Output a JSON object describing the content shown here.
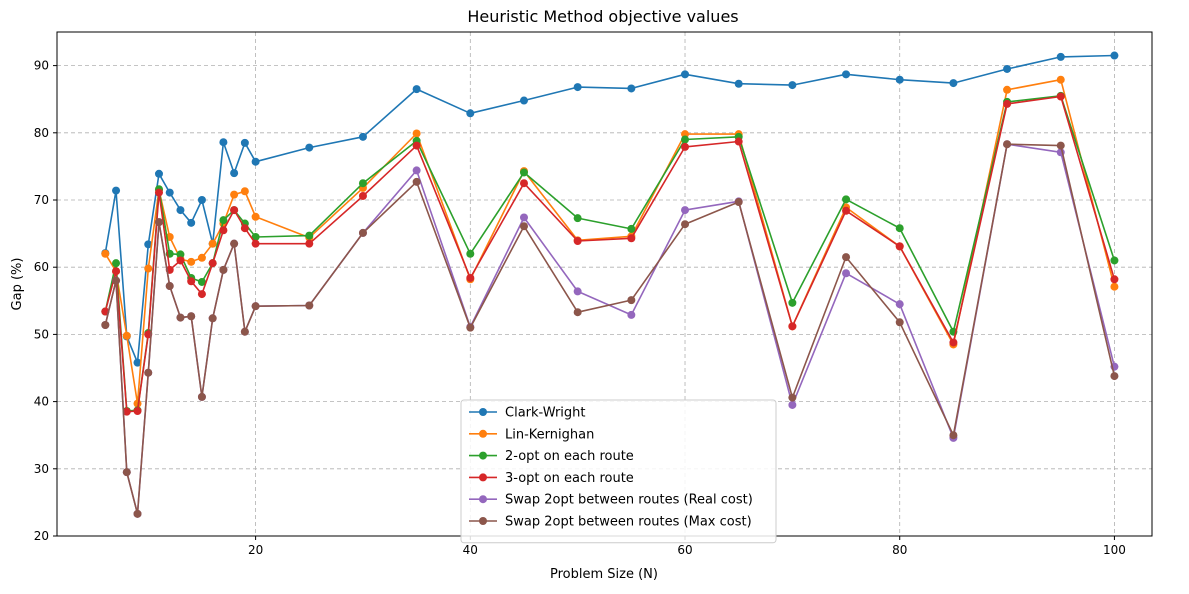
{
  "chart_data": {
    "type": "line",
    "title": "Heuristic Method objective values",
    "xlabel": "Problem Size (N)",
    "ylabel": "Gap (%)",
    "xlim": [
      1.5,
      103.5
    ],
    "ylim": [
      20,
      95
    ],
    "xticks": [
      20,
      40,
      60,
      80,
      100
    ],
    "yticks": [
      20,
      30,
      40,
      50,
      60,
      70,
      80,
      90
    ],
    "grid": true,
    "legend_position": "lower-center",
    "x": [
      6,
      7,
      8,
      9,
      10,
      11,
      12,
      13,
      14,
      15,
      16,
      17,
      18,
      19,
      20,
      25,
      30,
      35,
      40,
      45,
      50,
      55,
      60,
      65,
      70,
      75,
      80,
      85,
      90,
      95,
      100
    ],
    "series": [
      {
        "name": "Clark-Wright",
        "color": "#1f77b4",
        "values": [
          62.1,
          71.4,
          49.7,
          45.8,
          63.4,
          73.9,
          71.1,
          68.5,
          66.6,
          70.0,
          63.5,
          78.6,
          74.0,
          78.5,
          75.7,
          77.8,
          79.4,
          86.5,
          82.9,
          84.8,
          86.8,
          86.6,
          88.7,
          87.3,
          87.1,
          88.7,
          87.9,
          87.4,
          89.5,
          91.3,
          91.5
        ]
      },
      {
        "name": "Lin-Kernighan",
        "color": "#ff7f0e",
        "values": [
          62.0,
          59.4,
          49.8,
          39.7,
          59.8,
          71.5,
          64.5,
          61.2,
          60.8,
          61.4,
          63.5,
          66.5,
          70.8,
          71.3,
          67.5,
          64.4,
          71.8,
          79.9,
          58.2,
          74.3,
          64.0,
          64.6,
          79.8,
          79.8,
          51.2,
          68.9,
          63.1,
          48.5,
          86.4,
          87.9,
          57.1
        ]
      },
      {
        "name": "2-opt on each route",
        "color": "#2ca02c",
        "values": [
          53.4,
          60.6,
          38.6,
          38.7,
          50.2,
          71.6,
          62.0,
          61.9,
          58.4,
          57.8,
          60.6,
          67.0,
          68.5,
          66.5,
          64.5,
          64.7,
          72.5,
          78.8,
          62.0,
          74.1,
          67.3,
          65.7,
          79.0,
          79.4,
          54.7,
          70.1,
          65.8,
          50.4,
          84.6,
          85.5,
          61.0
        ]
      },
      {
        "name": "3-opt on each route",
        "color": "#d62728",
        "values": [
          53.4,
          59.4,
          38.5,
          38.6,
          50.0,
          71.1,
          59.6,
          61.0,
          57.9,
          56.0,
          60.6,
          65.5,
          68.5,
          65.8,
          63.5,
          63.5,
          70.6,
          78.1,
          58.4,
          72.5,
          63.9,
          64.3,
          77.9,
          78.7,
          51.2,
          68.4,
          63.1,
          48.8,
          84.3,
          85.4,
          58.2
        ]
      },
      {
        "name": "Swap 2opt between routes (Real cost)",
        "color": "#9467bd",
        "values": [
          51.4,
          58.0,
          29.5,
          23.3,
          44.3,
          66.7,
          57.2,
          52.5,
          52.7,
          40.7,
          52.4,
          59.6,
          63.5,
          50.4,
          54.2,
          54.3,
          65.1,
          74.4,
          51.1,
          67.4,
          56.4,
          52.9,
          68.5,
          69.8,
          39.5,
          59.1,
          54.5,
          34.6,
          78.3,
          77.1,
          45.2
        ]
      },
      {
        "name": "Swap 2opt between routes (Max cost)",
        "color": "#8c564b",
        "values": [
          51.4,
          58.0,
          29.5,
          23.3,
          44.3,
          66.7,
          57.2,
          52.5,
          52.7,
          40.7,
          52.4,
          59.6,
          63.5,
          50.4,
          54.2,
          54.3,
          65.1,
          72.7,
          51.0,
          66.1,
          53.3,
          55.1,
          66.4,
          69.7,
          40.6,
          61.5,
          51.8,
          35.0,
          78.3,
          78.1,
          43.8
        ]
      }
    ]
  }
}
